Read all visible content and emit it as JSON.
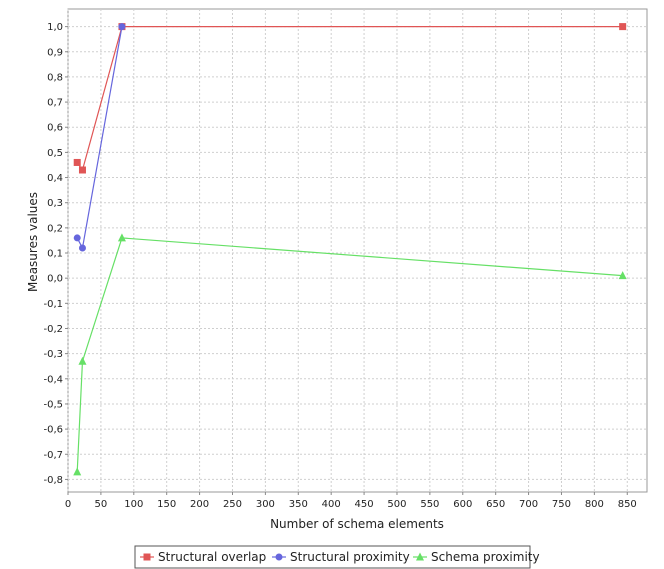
{
  "chart_data": {
    "type": "line",
    "title": "",
    "xlabel": "Number of schema elements",
    "ylabel": "Measures values",
    "xlim": [
      0,
      880
    ],
    "ylim": [
      -0.85,
      1.07
    ],
    "x_ticks": [
      "0",
      "50",
      "100",
      "150",
      "200",
      "250",
      "300",
      "350",
      "400",
      "450",
      "500",
      "550",
      "600",
      "650",
      "700",
      "750",
      "800",
      "850"
    ],
    "y_ticks": [
      "-0,8",
      "-0,7",
      "-0,6",
      "-0,5",
      "-0,4",
      "-0,3",
      "-0,2",
      "-0,1",
      "0,0",
      "0,1",
      "0,2",
      "0,3",
      "0,4",
      "0,5",
      "0,6",
      "0,7",
      "0,8",
      "0,9",
      "1,0"
    ],
    "grid": true,
    "legend_position": "bottom",
    "series": [
      {
        "name": "Structural overlap",
        "color": "#e05555",
        "marker": "square",
        "points": [
          [
            14,
            0.46
          ],
          [
            22,
            0.43
          ],
          [
            82,
            1.0
          ],
          [
            843,
            1.0
          ]
        ]
      },
      {
        "name": "Structural proximity",
        "color": "#6666dd",
        "marker": "circle",
        "points": [
          [
            14,
            0.16
          ],
          [
            22,
            0.12
          ],
          [
            82,
            1.0
          ]
        ]
      },
      {
        "name": "Schema proximity",
        "color": "#66e066",
        "marker": "triangle",
        "points": [
          [
            14,
            -0.77
          ],
          [
            22,
            -0.33
          ],
          [
            82,
            0.16
          ],
          [
            843,
            0.01
          ]
        ]
      }
    ]
  }
}
